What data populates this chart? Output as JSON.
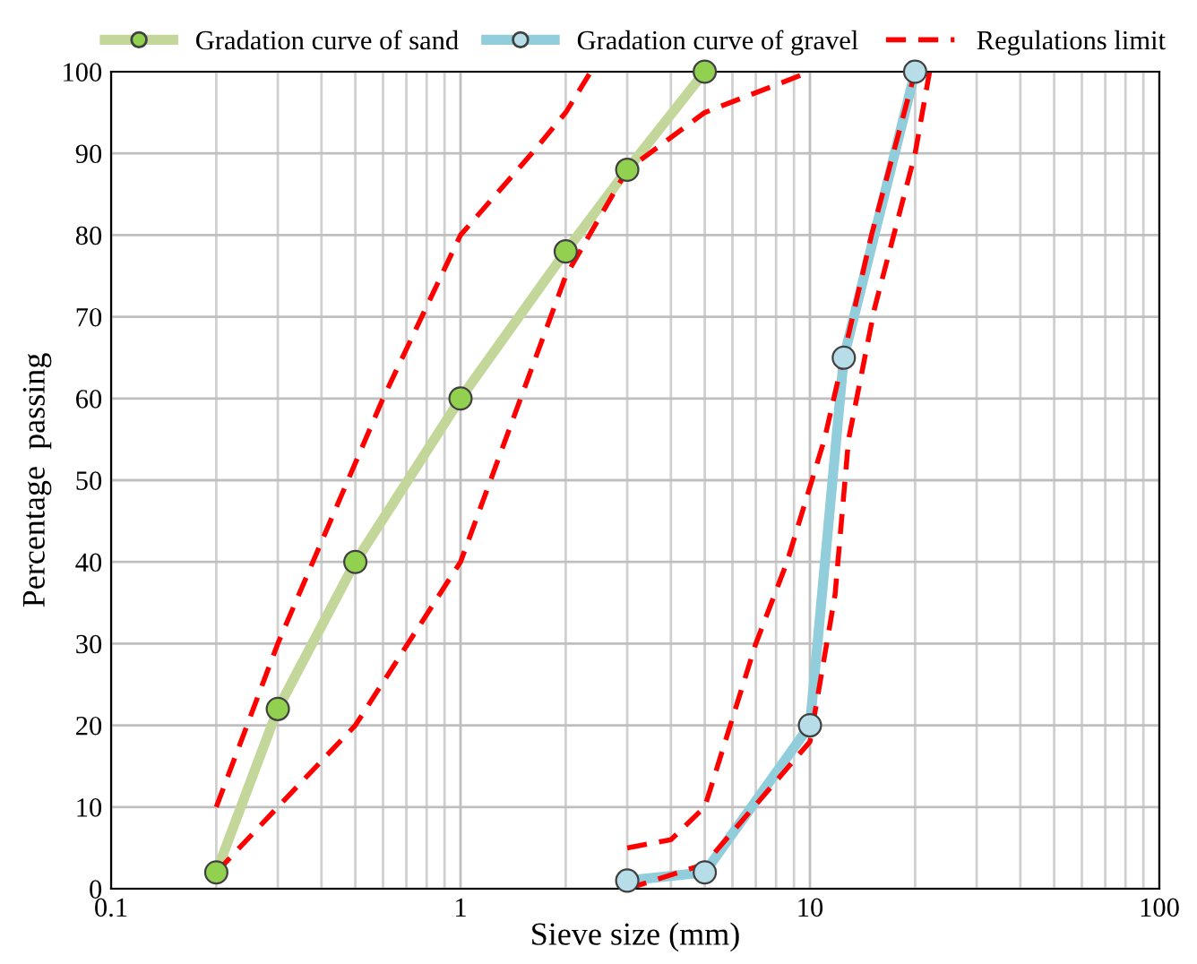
{
  "chart_data": {
    "type": "line",
    "xlabel": "Sieve size (mm)",
    "ylabel": "Percentage  passing",
    "log": "x",
    "xlim": [
      0.1,
      100
    ],
    "xticks": [
      0.1,
      1,
      10,
      100
    ],
    "ylim": [
      0,
      100
    ],
    "yticks": [
      0,
      10,
      20,
      30,
      40,
      50,
      60,
      70,
      80,
      90,
      100
    ],
    "grid": true,
    "legend": "top",
    "series": [
      {
        "name": "Gradation curve of sand",
        "color": "#c4d79b",
        "colors": [
          "#92d050",
          "#92d050",
          "#92d050",
          "#92d050",
          "#92d050",
          "#92d050",
          "#92d050"
        ],
        "marker": "circle",
        "line_style": "solid",
        "x": [
          0.2,
          0.3,
          0.5,
          1,
          2,
          3,
          5
        ],
        "values": [
          2,
          22,
          40,
          60,
          78,
          88,
          100
        ]
      },
      {
        "name": "Gradation curve of gravel",
        "color": "#92cddc",
        "colors": [
          "#b7dee8",
          "#b7dee8",
          "#b7dee8",
          "#b7dee8",
          "#b7dee8"
        ],
        "marker": "circle",
        "line_style": "solid",
        "x": [
          3,
          5,
          10,
          12.5,
          20
        ],
        "values": [
          1,
          2,
          20,
          65,
          100
        ]
      },
      {
        "name": "Regulations limit",
        "color": "#ff0000",
        "marker": "none",
        "line_style": "dashed",
        "x": [
          0.2,
          0.3,
          0.6,
          1,
          1.6,
          2,
          2.36
        ],
        "values": [
          10,
          30,
          60,
          80,
          90,
          95,
          100
        ]
      },
      {
        "color": "#ff0000",
        "marker": "none",
        "line_style": "dashed",
        "x": [
          0.2,
          0.3,
          0.5,
          1,
          2,
          3,
          5,
          10
        ],
        "values": [
          2,
          10,
          20,
          40,
          75,
          88,
          95,
          100
        ]
      },
      {
        "color": "#ff0000",
        "marker": "none",
        "line_style": "dashed",
        "x": [
          3,
          4,
          5,
          7,
          8.6,
          11,
          15,
          20
        ],
        "values": [
          5,
          6,
          10,
          30,
          40,
          55,
          80,
          100
        ]
      },
      {
        "color": "#ff0000",
        "marker": "none",
        "line_style": "dashed",
        "x": [
          3,
          5,
          10,
          11.8,
          12.9,
          15.3,
          20,
          22
        ],
        "values": [
          0,
          3,
          18,
          36,
          55,
          71,
          90,
          100
        ]
      }
    ]
  }
}
